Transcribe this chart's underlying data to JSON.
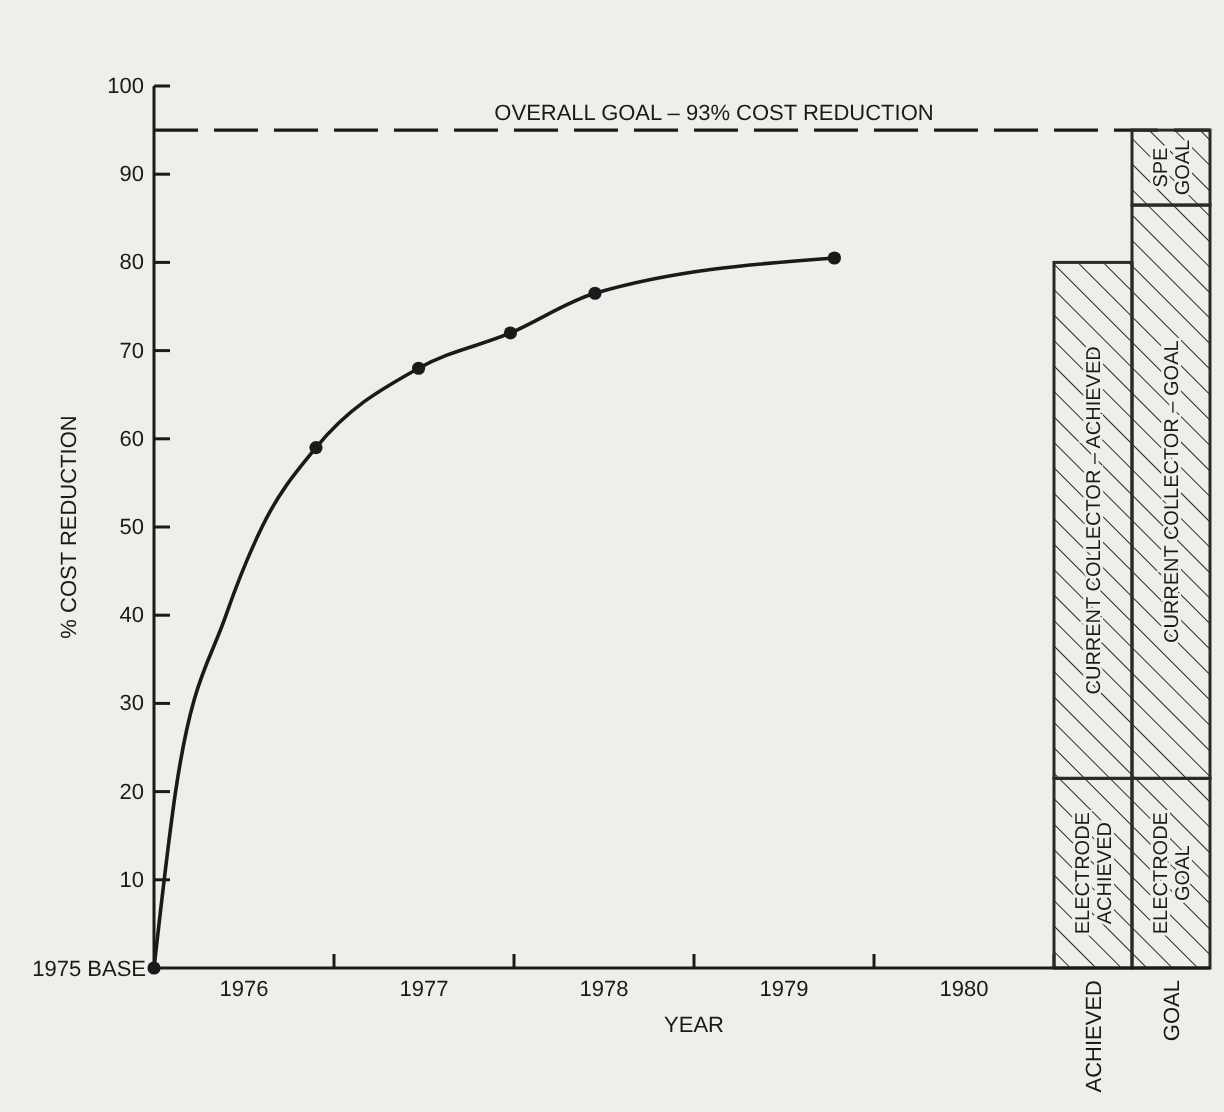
{
  "chart_data": [
    {
      "type": "line",
      "xlabel": "YEAR",
      "ylabel": "% COST REDUCTION",
      "xlim": [
        1976,
        1981
      ],
      "xticks": [
        {
          "value": 1976.5,
          "label": "1976"
        },
        {
          "value": 1977,
          "label": null
        },
        {
          "value": 1977.5,
          "label": "1977"
        },
        {
          "value": 1978,
          "label": null
        },
        {
          "value": 1978.5,
          "label": "1978"
        },
        {
          "value": 1979,
          "label": null
        },
        {
          "value": 1979.5,
          "label": "1979"
        },
        {
          "value": 1980,
          "label": null
        },
        {
          "value": 1980.5,
          "label": "1980"
        },
        {
          "value": 1981,
          "label": null
        }
      ],
      "ylim": [
        0,
        100
      ],
      "yticks": [
        10,
        20,
        30,
        40,
        50,
        60,
        70,
        80,
        90,
        100
      ],
      "annotations": [
        {
          "text": "1975 BASE",
          "x": 1976,
          "y": 0
        }
      ],
      "series": [
        {
          "type": "line",
          "color": "#1a1a1a",
          "marker": "none",
          "x": [
            1976,
            1976.12,
            1976.4,
            1976.6,
            1976.9,
            1977.47,
            1977.98,
            1978.45,
            1979.78
          ],
          "values": [
            0,
            20,
            40,
            50,
            59,
            68,
            72,
            76.5,
            80.5
          ]
        },
        {
          "type": "scatter",
          "color": "#1a1a1a",
          "marker": "circle",
          "x": [
            1976,
            1976.9,
            1977.47,
            1977.98,
            1978.45,
            1979.78
          ],
          "values": [
            0,
            59,
            68,
            72,
            76.5,
            80.5
          ]
        }
      ],
      "ref_lines": [
        {
          "axis": "y",
          "value": 95,
          "label": "OVERALL GOAL – 93% COST REDUCTION",
          "line_style": "dashed",
          "color": "#1a1a1a"
        }
      ]
    },
    {
      "type": "bar",
      "stacked": true,
      "tick_labels": "x",
      "categories": [
        "ACHIEVED",
        "GOAL"
      ],
      "ylim": [
        0,
        100
      ],
      "series": [
        {
          "name": "ELECTRODE ACHIEVED",
          "color": "#2a2a2a",
          "values": [
            21.5,
            null
          ]
        },
        {
          "name": "ELECTRODE GOAL",
          "color": "#2a2a2a",
          "values": [
            null,
            21.5
          ]
        },
        {
          "name": "CURRENT COLLECTOR – ACHIEVED",
          "color": "#2a2a2a",
          "values": [
            58.5,
            null
          ]
        },
        {
          "name": "CURRENT COLLECTOR – GOAL",
          "color": "#2a2a2a",
          "values": [
            null,
            65
          ]
        },
        {
          "name": "SPE GOAL",
          "color": "#2a2a2a",
          "values": [
            null,
            8.5
          ]
        }
      ],
      "ref_lines": [
        {
          "axis": "y",
          "value": 95,
          "line_style": "dashed",
          "color": "#1a1a1a"
        }
      ]
    }
  ]
}
